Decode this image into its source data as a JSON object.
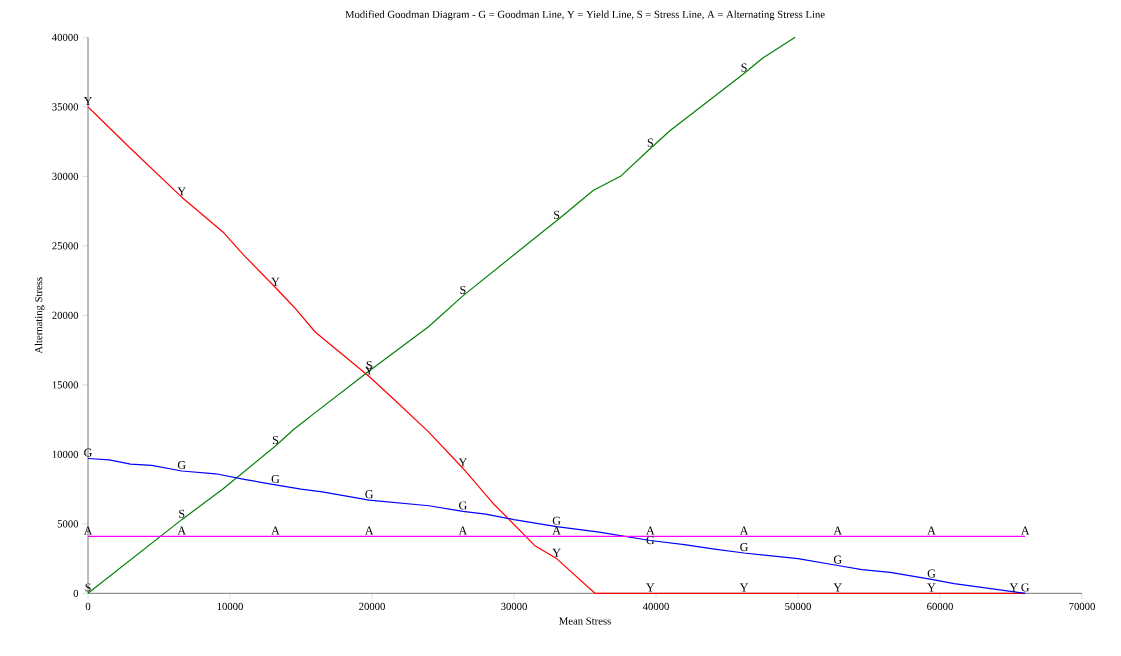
{
  "chart_data": {
    "type": "line",
    "title": "Modified Goodman Diagram - G = Goodman Line, Y = Yield Line, S = Stress Line, A = Alternating Stress Line",
    "xlabel": "Mean Stress",
    "ylabel": "Alternating Stress",
    "xlim": [
      0,
      70000
    ],
    "ylim": [
      0,
      40000
    ],
    "xticks": [
      0,
      10000,
      20000,
      30000,
      40000,
      50000,
      60000,
      70000
    ],
    "yticks": [
      0,
      5000,
      10000,
      15000,
      20000,
      25000,
      30000,
      35000,
      40000
    ],
    "grid": false,
    "marker": "none",
    "line_style": "solid",
    "series": [
      {
        "color": "#ff0000",
        "x": [
          0,
          1000,
          3000,
          6600,
          9500,
          11000,
          13200,
          14500,
          16000,
          19800,
          21500,
          24000,
          26400,
          28500,
          31500,
          33000,
          35700,
          39600,
          46200,
          52800,
          59400,
          66000
        ],
        "values": [
          35000,
          34000,
          32000,
          28500,
          26000,
          24300,
          22000,
          20600,
          18800,
          15600,
          14000,
          11600,
          9000,
          6500,
          3400,
          2500,
          0,
          0,
          0,
          0,
          0,
          0
        ]
      },
      {
        "color": "#008000",
        "x": [
          0,
          6600,
          9500,
          13200,
          14500,
          16000,
          19800,
          24000,
          26400,
          32000,
          33000,
          35600,
          37500,
          39600,
          41000,
          46200,
          47500,
          49800
        ],
        "values": [
          0,
          5300,
          7500,
          10600,
          11800,
          13000,
          16000,
          19200,
          21400,
          26000,
          26800,
          29000,
          30000,
          32000,
          33300,
          37400,
          38500,
          40000
        ]
      },
      {
        "color": "#0000ff",
        "x": [
          0,
          1500,
          3000,
          4500,
          6600,
          9000,
          11000,
          13200,
          15000,
          16500,
          19800,
          24000,
          26400,
          28000,
          30000,
          33000,
          36000,
          39600,
          42000,
          44000,
          46200,
          50000,
          52800,
          54500,
          56500,
          59400,
          61000,
          66000
        ],
        "values": [
          9700,
          9600,
          9300,
          9200,
          8800,
          8600,
          8200,
          7800,
          7500,
          7300,
          6700,
          6300,
          5900,
          5700,
          5300,
          4800,
          4400,
          3800,
          3500,
          3200,
          2900,
          2500,
          2000,
          1700,
          1500,
          1000,
          700,
          0
        ]
      },
      {
        "color": "#ff00ff",
        "x": [
          0,
          66000
        ],
        "values": [
          4100,
          4100
        ]
      }
    ],
    "annotations": [
      {
        "text": "Y",
        "x": 0,
        "y": 35000
      },
      {
        "text": "Y",
        "x": 6600,
        "y": 28500
      },
      {
        "text": "Y",
        "x": 13200,
        "y": 22000
      },
      {
        "text": "Y",
        "x": 19800,
        "y": 15600
      },
      {
        "text": "Y",
        "x": 26400,
        "y": 9000
      },
      {
        "text": "Y",
        "x": 33000,
        "y": 2500
      },
      {
        "text": "Y",
        "x": 39600,
        "y": 0
      },
      {
        "text": "Y",
        "x": 46200,
        "y": 0
      },
      {
        "text": "Y",
        "x": 52800,
        "y": 0
      },
      {
        "text": "Y",
        "x": 59400,
        "y": 0
      },
      {
        "text": "Y",
        "x": 65200,
        "y": 0
      },
      {
        "text": "S",
        "x": 0,
        "y": 0
      },
      {
        "text": "S",
        "x": 6600,
        "y": 5300
      },
      {
        "text": "S",
        "x": 13200,
        "y": 10600
      },
      {
        "text": "S",
        "x": 19800,
        "y": 16000
      },
      {
        "text": "S",
        "x": 26400,
        "y": 21400
      },
      {
        "text": "S",
        "x": 33000,
        "y": 26800
      },
      {
        "text": "S",
        "x": 39600,
        "y": 32000
      },
      {
        "text": "S",
        "x": 46200,
        "y": 37400
      },
      {
        "text": "G",
        "x": 0,
        "y": 9700
      },
      {
        "text": "G",
        "x": 6600,
        "y": 8800
      },
      {
        "text": "G",
        "x": 13200,
        "y": 7800
      },
      {
        "text": "G",
        "x": 19800,
        "y": 6700
      },
      {
        "text": "G",
        "x": 26400,
        "y": 5900
      },
      {
        "text": "G",
        "x": 33000,
        "y": 4800
      },
      {
        "text": "G",
        "x": 39600,
        "y": 3400
      },
      {
        "text": "G",
        "x": 46200,
        "y": 2900
      },
      {
        "text": "G",
        "x": 52800,
        "y": 2000
      },
      {
        "text": "G",
        "x": 59400,
        "y": 1000
      },
      {
        "text": "G",
        "x": 66000,
        "y": 0
      },
      {
        "text": "A",
        "x": 0,
        "y": 4100
      },
      {
        "text": "A",
        "x": 6600,
        "y": 4100
      },
      {
        "text": "A",
        "x": 13200,
        "y": 4100
      },
      {
        "text": "A",
        "x": 19800,
        "y": 4100
      },
      {
        "text": "A",
        "x": 26400,
        "y": 4100
      },
      {
        "text": "A",
        "x": 33000,
        "y": 4100
      },
      {
        "text": "A",
        "x": 39600,
        "y": 4100
      },
      {
        "text": "A",
        "x": 46200,
        "y": 4100
      },
      {
        "text": "A",
        "x": 52800,
        "y": 4100
      },
      {
        "text": "A",
        "x": 59400,
        "y": 4100
      },
      {
        "text": "A",
        "x": 66000,
        "y": 4100
      }
    ]
  }
}
